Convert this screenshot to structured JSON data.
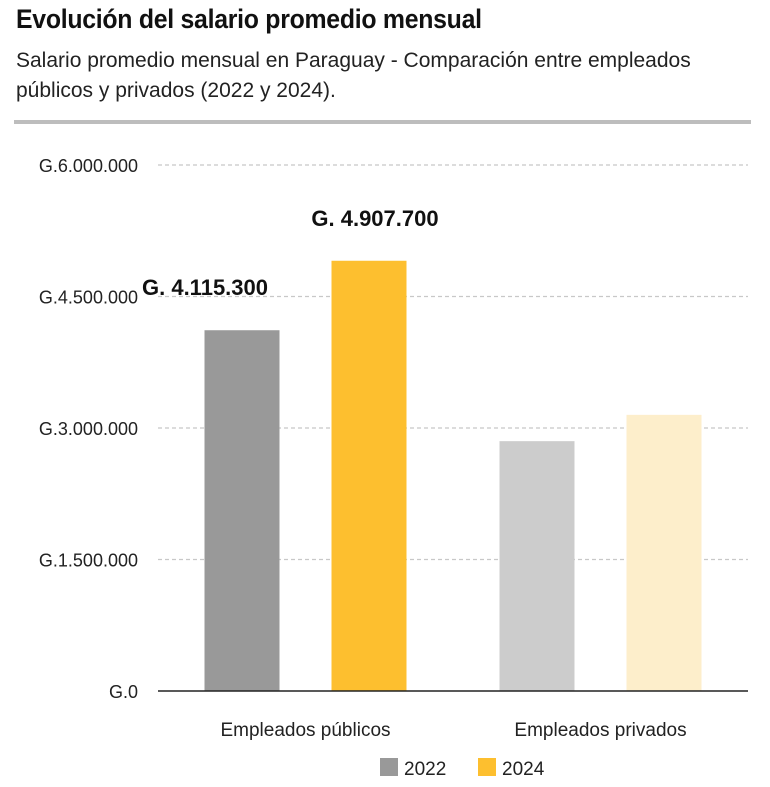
{
  "title": "Evolución del salario promedio mensual",
  "subtitle": "Salario promedio mensual en Paraguay - Comparación entre empleados públicos y privados (2022 y 2024).",
  "chart_data": {
    "type": "bar",
    "categories": [
      "Empleados públicos",
      "Empleados privados"
    ],
    "series": [
      {
        "name": "2022",
        "values": [
          4115300,
          2850000
        ]
      },
      {
        "name": "2024",
        "values": [
          4907700,
          3150000
        ]
      }
    ],
    "data_labels": [
      [
        "G. 4.115.300",
        ""
      ],
      [
        "G. 4.907.700",
        ""
      ]
    ],
    "bar_colors": [
      [
        "#999999",
        "#cccccc"
      ],
      [
        "#fdbf2f",
        "#fdeecb"
      ]
    ],
    "legend_colors": [
      "#999999",
      "#fdbf2f"
    ],
    "ylim": [
      0,
      6000000
    ],
    "yticks": [
      0,
      1500000,
      3000000,
      4500000,
      6000000
    ],
    "ytick_labels": [
      "G.0",
      "G.1.500.000",
      "G.3.000.000",
      "G.4.500.000",
      "G.6.000.000"
    ],
    "grid": true,
    "legend_position": "bottom-center"
  }
}
